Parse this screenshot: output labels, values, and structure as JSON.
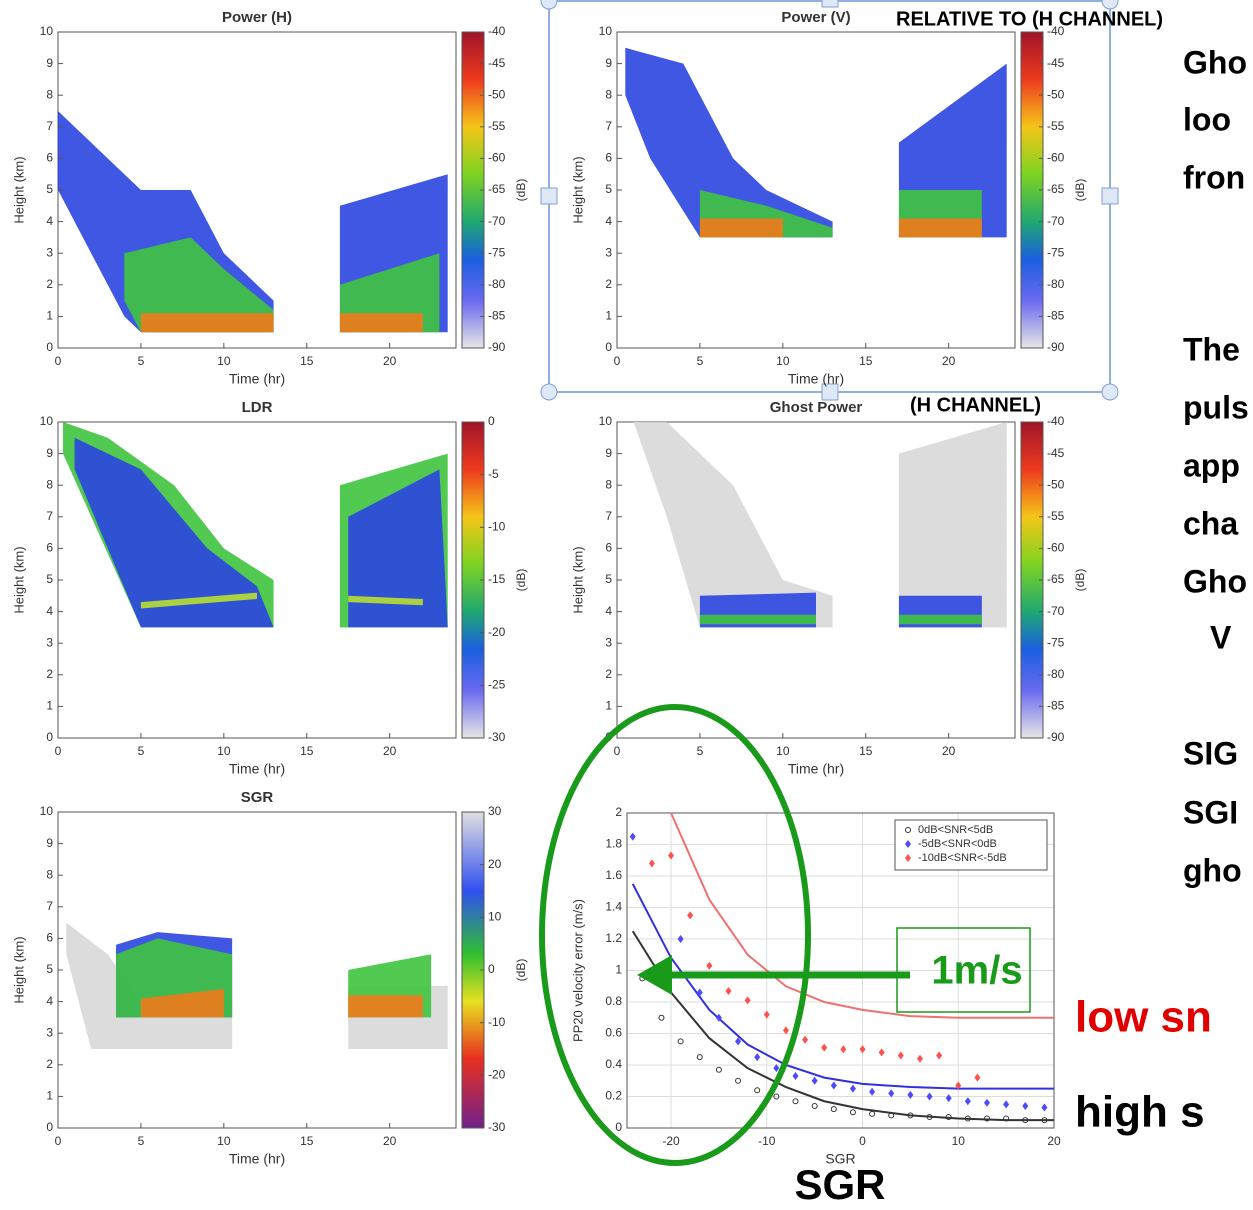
{
  "chart_data": [
    {
      "type": "heatmap",
      "title": "Power (H)",
      "xlabel": "Time (hr)",
      "ylabel": "Height (km)",
      "xlim": [
        0,
        24
      ],
      "xticks": [
        0,
        5,
        10,
        15,
        20
      ],
      "ylim": [
        0,
        10
      ],
      "yticks": [
        0,
        1,
        2,
        3,
        4,
        5,
        6,
        7,
        8,
        9,
        10
      ],
      "clim": [
        -90,
        -40
      ],
      "cticks": [
        -40,
        -45,
        -50,
        -55,
        -60,
        -65,
        -70,
        -75,
        -80,
        -85,
        -90
      ],
      "clabel": "(dB)"
    },
    {
      "type": "heatmap",
      "title": "Power (V)",
      "xlabel": "Time (hr)",
      "ylabel": "Height (km)",
      "xlim": [
        0,
        24
      ],
      "xticks": [
        0,
        5,
        10,
        15,
        20
      ],
      "ylim": [
        0,
        10
      ],
      "yticks": [
        0,
        1,
        2,
        3,
        4,
        5,
        6,
        7,
        8,
        9,
        10
      ],
      "clim": [
        -90,
        -40
      ],
      "cticks": [
        -40,
        -45,
        -50,
        -55,
        -60,
        -65,
        -70,
        -75,
        -80,
        -85,
        -90
      ],
      "clabel": "(dB)"
    },
    {
      "type": "heatmap",
      "title": "LDR",
      "xlabel": "Time (hr)",
      "ylabel": "Height (km)",
      "xlim": [
        0,
        24
      ],
      "xticks": [
        0,
        5,
        10,
        15,
        20
      ],
      "ylim": [
        0,
        10
      ],
      "yticks": [
        0,
        1,
        2,
        3,
        4,
        5,
        6,
        7,
        8,
        9,
        10
      ],
      "clim": [
        -30,
        0
      ],
      "cticks": [
        0,
        -5,
        -10,
        -15,
        -20,
        -25,
        -30
      ],
      "clabel": "(dB)"
    },
    {
      "type": "heatmap",
      "title": "Ghost Power",
      "xlabel": "Time (hr)",
      "ylabel": "Height (km)",
      "xlim": [
        0,
        24
      ],
      "xticks": [
        0,
        5,
        10,
        15,
        20
      ],
      "ylim": [
        0,
        10
      ],
      "yticks": [
        0,
        1,
        2,
        3,
        4,
        5,
        6,
        7,
        8,
        9,
        10
      ],
      "clim": [
        -90,
        -40
      ],
      "cticks": [
        -40,
        -45,
        -50,
        -55,
        -60,
        -65,
        -70,
        -75,
        -80,
        -85,
        -90
      ],
      "clabel": "(dB)"
    },
    {
      "type": "heatmap",
      "title": "SGR",
      "xlabel": "Time (hr)",
      "ylabel": "Height (km)",
      "xlim": [
        0,
        24
      ],
      "xticks": [
        0,
        5,
        10,
        15,
        20
      ],
      "ylim": [
        0,
        10
      ],
      "yticks": [
        0,
        1,
        2,
        3,
        4,
        5,
        6,
        7,
        8,
        9,
        10
      ],
      "clim": [
        -30,
        30
      ],
      "cticks": [
        30,
        20,
        10,
        0,
        -10,
        -20,
        -30
      ],
      "clabel": "(dB)"
    },
    {
      "type": "scatter",
      "xlabel": "SGR",
      "ylabel": "PP20 velocity error (m/s)",
      "xlim": [
        -24.6,
        20
      ],
      "xticks": [
        -20,
        -10,
        0,
        10,
        20
      ],
      "ylim": [
        0,
        2
      ],
      "yticks": [
        0,
        0.2,
        0.4,
        0.6,
        0.8,
        1,
        1.2,
        1.4,
        1.6,
        1.8,
        2
      ],
      "grid": true,
      "series": [
        {
          "name": "0dB<SNR<5dB",
          "color": "#333333",
          "x": [
            -23,
            -21,
            -19,
            -17,
            -15,
            -13,
            -11,
            -9,
            -7,
            -5,
            -3,
            -1,
            1,
            3,
            5,
            7,
            9,
            11,
            13,
            15,
            17,
            19
          ],
          "values": [
            0.95,
            0.7,
            0.55,
            0.45,
            0.37,
            0.3,
            0.24,
            0.2,
            0.17,
            0.14,
            0.12,
            0.1,
            0.09,
            0.08,
            0.08,
            0.07,
            0.07,
            0.06,
            0.06,
            0.06,
            0.05,
            0.05
          ]
        },
        {
          "name": "-5dB<SNR<0dB",
          "color": "#4a4aff",
          "x": [
            -24,
            -19,
            -17,
            -15,
            -13,
            -11,
            -9,
            -7,
            -5,
            -3,
            -1,
            1,
            3,
            5,
            7,
            9,
            11,
            13,
            15,
            17,
            19
          ],
          "values": [
            1.85,
            1.2,
            0.86,
            0.7,
            0.55,
            0.45,
            0.38,
            0.33,
            0.3,
            0.27,
            0.25,
            0.23,
            0.22,
            0.21,
            0.2,
            0.19,
            0.17,
            0.16,
            0.15,
            0.14,
            0.13
          ]
        },
        {
          "name": "-10dB<SNR<-5dB",
          "color": "#ff5050",
          "x": [
            -22,
            -20,
            -18,
            -16,
            -14,
            -12,
            -10,
            -8,
            -6,
            -4,
            -2,
            0,
            2,
            4,
            6,
            8,
            10,
            12
          ],
          "values": [
            1.68,
            1.73,
            1.35,
            1.03,
            0.87,
            0.81,
            0.72,
            0.62,
            0.56,
            0.51,
            0.5,
            0.5,
            0.48,
            0.46,
            0.44,
            0.46,
            0.27,
            0.32
          ]
        }
      ],
      "fits": [
        {
          "color": "#333333",
          "x": [
            -24,
            -20,
            -16,
            -12,
            -8,
            -4,
            0,
            5,
            10,
            15,
            20
          ],
          "values": [
            1.25,
            0.86,
            0.57,
            0.38,
            0.26,
            0.17,
            0.12,
            0.08,
            0.06,
            0.05,
            0.05
          ]
        },
        {
          "color": "#3030e0",
          "x": [
            -24,
            -20,
            -16,
            -12,
            -8,
            -4,
            0,
            5,
            10,
            15,
            20
          ],
          "values": [
            1.55,
            1.08,
            0.75,
            0.53,
            0.4,
            0.32,
            0.28,
            0.26,
            0.25,
            0.25,
            0.25
          ]
        },
        {
          "color": "#f07070",
          "x": [
            -20,
            -16,
            -12,
            -8,
            -4,
            0,
            5,
            10,
            15,
            20
          ],
          "values": [
            2,
            1.45,
            1.1,
            0.9,
            0.8,
            0.75,
            0.71,
            0.7,
            0.7,
            0.7
          ]
        }
      ]
    }
  ],
  "slide": {
    "note_v": "RELATIVE TO (H CHANNEL)",
    "note_ghost": "(H CHANNEL)",
    "arrow_label": "1m/s",
    "low_snr": "low sn",
    "high_snr": "high s",
    "sgr_label": "SGR",
    "side_text": [
      "Gho",
      "loo",
      "fron",
      "The",
      "puls",
      "app",
      "cha",
      "Gho",
      "V",
      "SIG",
      "SGI",
      "gho"
    ]
  }
}
